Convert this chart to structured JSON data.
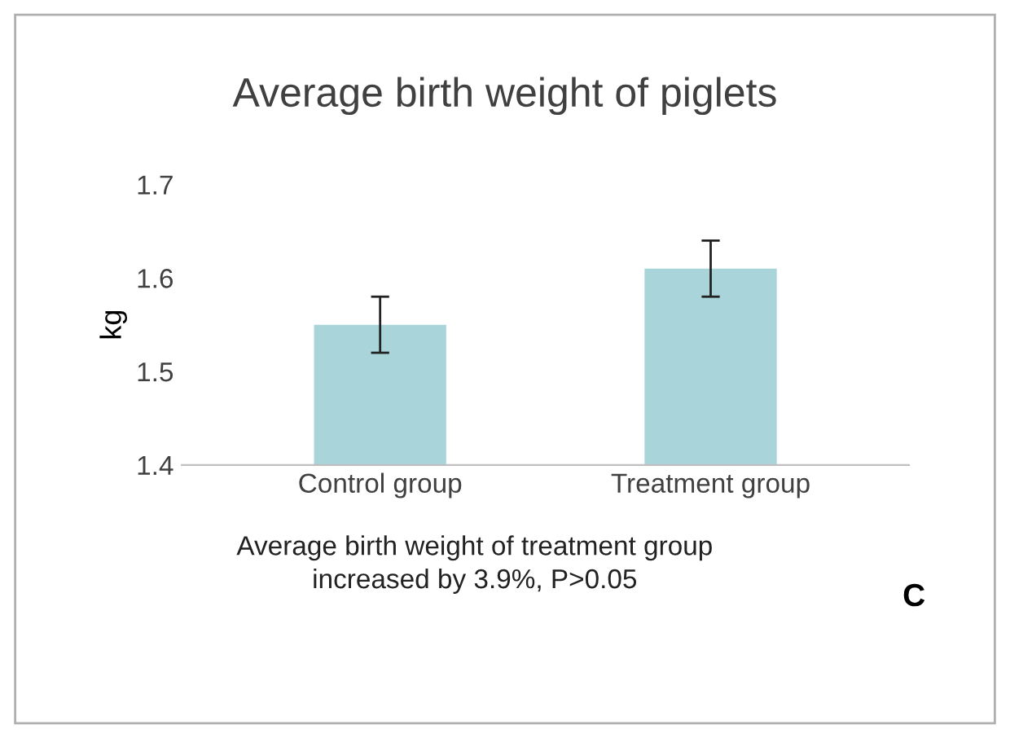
{
  "chart_data": {
    "type": "bar",
    "title": "Average birth weight of piglets",
    "ylabel": "kg",
    "categories": [
      "Control group",
      "Treatment group"
    ],
    "values": [
      1.55,
      1.61
    ],
    "errors": [
      0.03,
      0.03
    ],
    "color": "#a9d5da",
    "ylim": [
      1.4,
      1.7
    ],
    "yticks": [
      1.4,
      1.5,
      1.6,
      1.7
    ],
    "grid": false,
    "annotations": [
      "Average birth weight of treatment group\nincreased by 3.9%, P>0.05",
      "C"
    ]
  }
}
